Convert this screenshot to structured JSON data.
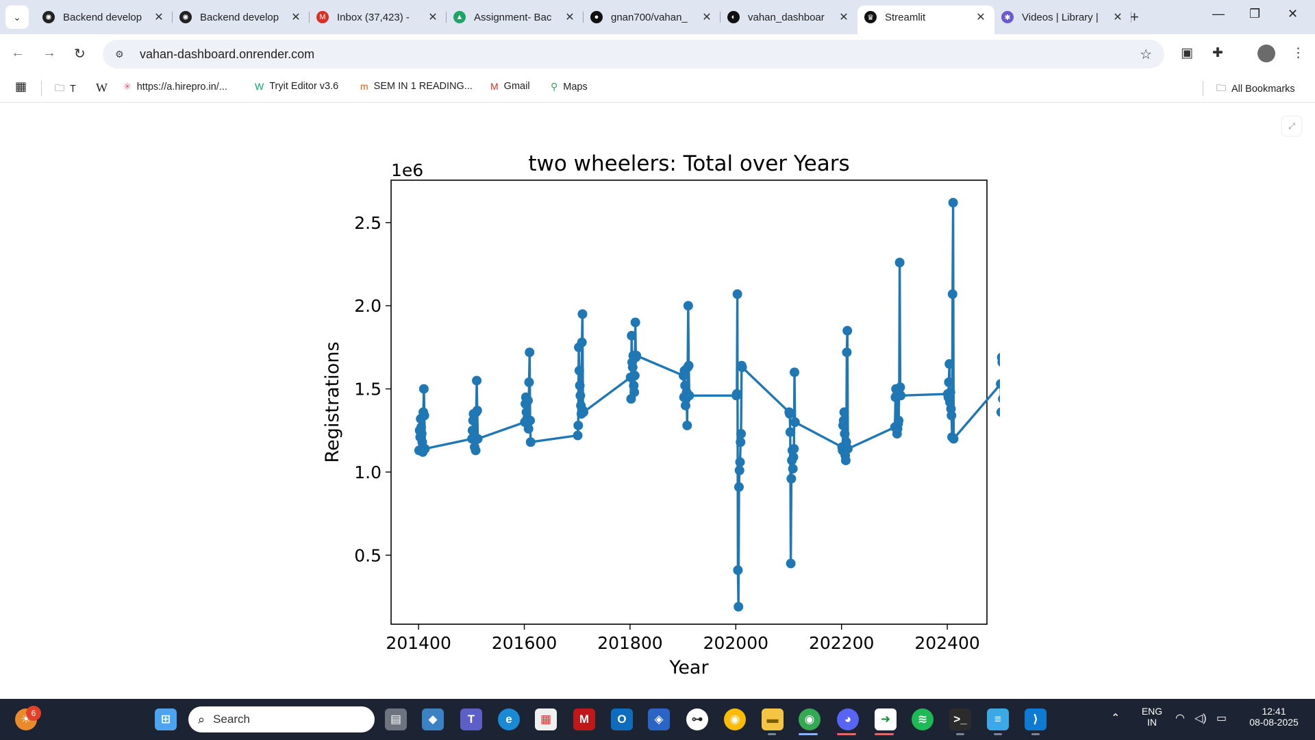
{
  "browser": {
    "tabs": [
      {
        "label": "Backend develop",
        "icon": "openai-icon",
        "color": "#222222"
      },
      {
        "label": "Backend develop",
        "icon": "openai-icon",
        "color": "#222222"
      },
      {
        "label": "Inbox (37,423) - ",
        "icon": "gmail-icon",
        "color": "#d93025"
      },
      {
        "label": "Assignment- Bac",
        "icon": "drive-icon",
        "color": "#1fa463"
      },
      {
        "label": "gnan700/vahan_",
        "icon": "github-icon",
        "color": "#111111"
      },
      {
        "label": "vahan_dashboar",
        "icon": "render-icon",
        "color": "#111111"
      },
      {
        "label": "Streamlit",
        "icon": "streamlit-icon",
        "color": "#111111",
        "active": true
      },
      {
        "label": "Videos | Library |",
        "icon": "library-icon",
        "color": "#6a5acd"
      }
    ],
    "url": "vahan-dashboard.onrender.com",
    "bookmarks": [
      {
        "label": "T",
        "icon": "folder-icon"
      },
      {
        "label": "W",
        "icon": "wikipedia-icon"
      },
      {
        "label": "https://a.hirepro.in/...",
        "icon": "hirepro-icon"
      },
      {
        "label": "Tryit Editor v3.6",
        "icon": "w3schools-icon"
      },
      {
        "label": "SEM IN 1 READING...",
        "icon": "bookmark-icon"
      },
      {
        "label": "Gmail",
        "icon": "gmail-icon"
      },
      {
        "label": "Maps",
        "icon": "maps-icon"
      }
    ],
    "all_bookmarks": "All Bookmarks"
  },
  "chart_data": {
    "type": "line",
    "title": "two wheelers: Total over Years",
    "xlabel": "Year",
    "ylabel": "Registrations",
    "y_offset_label": "1e6",
    "xticks": [
      201400,
      201600,
      201800,
      202000,
      202200,
      202400
    ],
    "xtick_labels": [
      "201400",
      "201600",
      "201800",
      "202000",
      "202200",
      "202400"
    ],
    "yticks": [
      0.5,
      1.0,
      1.5,
      2.0,
      2.5
    ],
    "ytick_labels": [
      "0.5",
      "1.0",
      "1.5",
      "2.0",
      "2.5"
    ],
    "xlim": [
      201348,
      202475
    ],
    "ylim": [
      0.085,
      2.755
    ],
    "y_multiplier": 1000000,
    "marker_color": "#1f77b4",
    "grid": false,
    "series": [
      {
        "x": [
          201401,
          201402,
          201403,
          201404,
          201405,
          201406,
          201407,
          201408,
          201409,
          201410,
          201411,
          201412,
          201501,
          201502,
          201503,
          201504,
          201505,
          201506,
          201507,
          201508,
          201509,
          201510,
          201511,
          201512,
          201601,
          201602,
          201603,
          201604,
          201605,
          201606,
          201607,
          201608,
          201609,
          201610,
          201611,
          201612,
          201701,
          201702,
          201703,
          201704,
          201705,
          201706,
          201707,
          201708,
          201709,
          201710,
          201711,
          201712,
          201801,
          201802,
          201803,
          201804,
          201805,
          201806,
          201807,
          201808,
          201809,
          201810,
          201811,
          201812,
          201901,
          201902,
          201903,
          201904,
          201905,
          201906,
          201907,
          201908,
          201909,
          201910,
          201911,
          201912,
          202001,
          202002,
          202003,
          202004,
          202005,
          202006,
          202007,
          202008,
          202009,
          202010,
          202011,
          202012,
          202101,
          202102,
          202103,
          202104,
          202105,
          202106,
          202107,
          202108,
          202109,
          202110,
          202111,
          202112,
          202201,
          202202,
          202203,
          202204,
          202205,
          202206,
          202207,
          202208,
          202209,
          202210,
          202211,
          202212,
          202301,
          202302,
          202303,
          202304,
          202305,
          202306,
          202307,
          202308,
          202309,
          202310,
          202311,
          202312,
          202401,
          202402,
          202403,
          202404,
          202405,
          202406,
          202407,
          202408,
          202409,
          202410,
          202411,
          202412,
          202501,
          202502,
          202503,
          202504,
          202505,
          202506
        ],
        "y": [
          1.13,
          1.25,
          1.21,
          1.32,
          1.27,
          1.23,
          1.18,
          1.12,
          1.36,
          1.5,
          1.34,
          1.14,
          1.2,
          1.25,
          1.31,
          1.35,
          1.21,
          1.15,
          1.19,
          1.13,
          1.36,
          1.55,
          1.37,
          1.2,
          1.3,
          1.41,
          1.45,
          1.36,
          1.32,
          1.29,
          1.43,
          1.26,
          1.54,
          1.72,
          1.31,
          1.18,
          1.22,
          1.28,
          1.75,
          1.61,
          1.52,
          1.46,
          1.4,
          1.35,
          1.78,
          1.95,
          1.37,
          1.36,
          1.57,
          1.44,
          1.82,
          1.66,
          1.63,
          1.7,
          1.52,
          1.48,
          1.58,
          1.9,
          1.69,
          1.7,
          1.58,
          1.45,
          1.61,
          1.52,
          1.4,
          1.44,
          1.48,
          1.28,
          1.63,
          2.0,
          1.64,
          1.46,
          1.46,
          1.47,
          2.07,
          0.41,
          0.19,
          0.91,
          1.01,
          1.06,
          1.18,
          1.23,
          1.64,
          1.63,
          1.36,
          1.35,
          1.24,
          0.45,
          0.96,
          1.07,
          1.13,
          1.02,
          1.09,
          1.14,
          1.6,
          1.3,
          1.15,
          1.13,
          1.28,
          1.31,
          1.36,
          1.23,
          1.1,
          1.07,
          1.18,
          1.72,
          1.85,
          1.14,
          1.27,
          1.45,
          1.5,
          1.46,
          1.23,
          1.26,
          1.29,
          1.31,
          1.5,
          2.26,
          1.51,
          1.46,
          1.47,
          1.45,
          1.54,
          1.65,
          1.42,
          1.48,
          1.38,
          1.34,
          1.21,
          2.07,
          2.62,
          1.2,
          1.53,
          1.36,
          1.69,
          1.66,
          1.44,
          1.66
        ]
      }
    ]
  },
  "taskbar": {
    "search_placeholder": "Search",
    "notification_count": "6",
    "lang_top": "ENG",
    "lang_bottom": "IN",
    "time": "12:41",
    "date": "08-08-2025"
  }
}
